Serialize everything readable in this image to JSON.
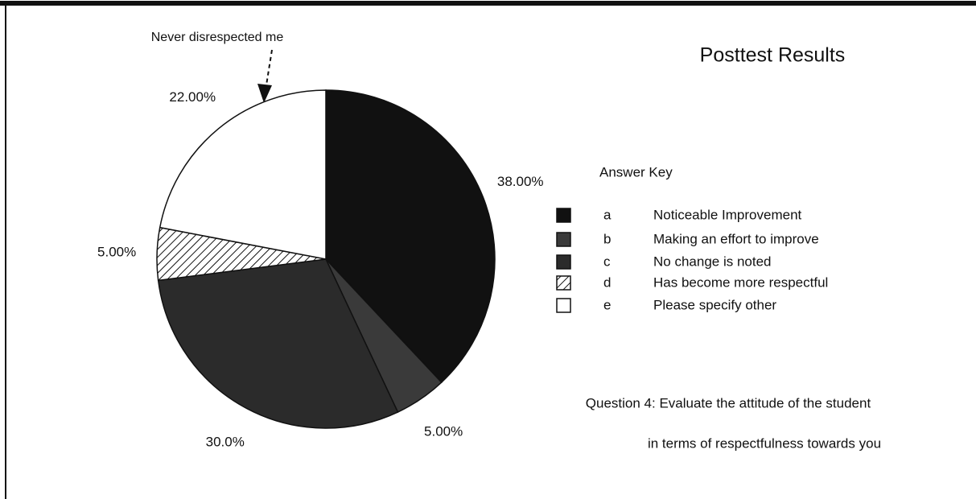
{
  "chart_data": {
    "type": "pie",
    "title": "Posttest Results",
    "legend_title": "Answer Key",
    "annotation": "Never disrespected me",
    "caption": [
      "Question 4: Evaluate the attitude of the student",
      "in terms of respectfulness towards you"
    ],
    "categories": [
      "a",
      "b",
      "c",
      "d",
      "e"
    ],
    "descriptions": [
      "Noticeable Improvement",
      "Making an effort to improve",
      "No change is noted",
      "Has become more respectful",
      "Please specify other"
    ],
    "values": [
      38,
      5,
      30,
      5,
      22
    ],
    "value_labels": [
      "38.00%",
      "5.00%",
      "30.0%",
      "5.00%",
      "22.00%"
    ],
    "fills": [
      "#111111",
      "#3a3a3a",
      "#2b2b2b",
      "hatch",
      "#ffffff"
    ]
  }
}
